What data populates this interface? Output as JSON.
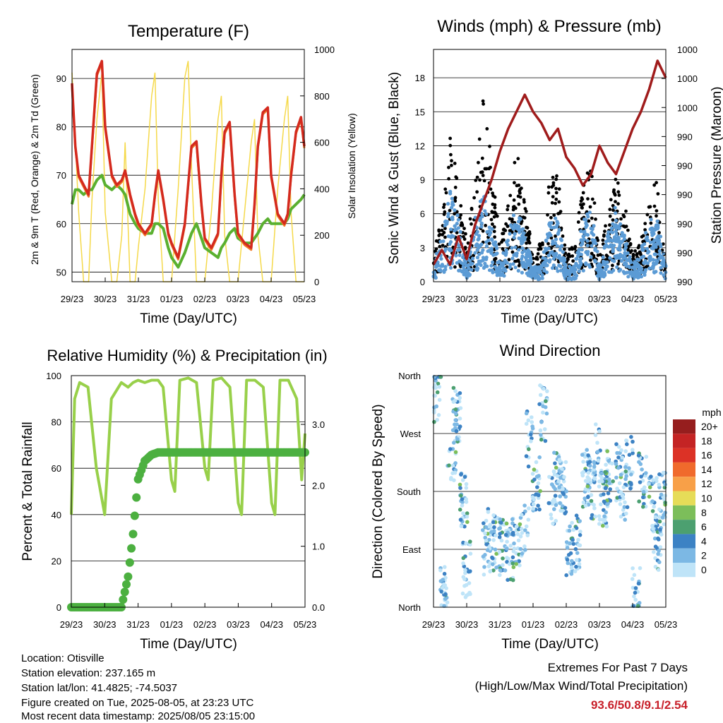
{
  "colors": {
    "temp_red": "#d42a1e",
    "temp_orange": "#f07a28",
    "dewpoint_green": "#5ab030",
    "solar_yellow": "#f5d94a",
    "wind_blue": "#5b9bd5",
    "gust_black": "#000000",
    "pressure_maroon": "#a01c1c",
    "rh_lightgreen": "#98d04a",
    "precip_green": "#4cb040",
    "extremes_red": "#c8202a"
  },
  "x_ticks": [
    "29/23",
    "30/23",
    "31/23",
    "01/23",
    "02/23",
    "03/23",
    "04/23",
    "05/23"
  ],
  "x_axis_label": "Time (Day/UTC)",
  "info": {
    "location": "Location: Otisville",
    "elevation": "Station elevation: 237.165 m",
    "latlon": "Station lat/lon: 41.4825; -74.5037",
    "created": "Figure created on Tue, 2025-08-05, at 23:23 UTC",
    "recent": "Most recent data timestamp: 2025/08/05 23:15:00"
  },
  "extremes": {
    "line1": "Extremes For Past 7 Days",
    "line2": "(High/Low/Max Wind/Total Precipitation)",
    "values": "93.6/50.8/9.1/2.54"
  },
  "chart_data": [
    {
      "type": "line",
      "title": "Temperature (F)",
      "xlabel": "Time (Day/UTC)",
      "ylabel": "2m & 9m T (Red, Orange) & 2m Td (Green)",
      "ylabel_right": "Solar Insolation (Yellow)",
      "ylim": [
        48,
        96
      ],
      "yticks": [
        50,
        60,
        70,
        80,
        90
      ],
      "ylim_right": [
        0,
        1000
      ],
      "yticks_right": [
        0,
        200,
        400,
        600,
        800,
        1000
      ],
      "x": [
        0,
        0.1,
        0.2,
        0.35,
        0.5,
        0.6,
        0.75,
        0.9,
        1.0,
        1.2,
        1.35,
        1.5,
        1.6,
        1.75,
        1.9,
        2.0,
        2.2,
        2.4,
        2.5,
        2.6,
        2.75,
        2.9,
        3.0,
        3.2,
        3.4,
        3.5,
        3.6,
        3.75,
        3.9,
        4.0,
        4.2,
        4.4,
        4.5,
        4.6,
        4.75,
        4.9,
        5.0,
        5.2,
        5.4,
        5.5,
        5.6,
        5.75,
        5.9,
        6.0,
        6.2,
        6.4,
        6.5,
        6.6,
        6.75,
        6.9,
        7.0
      ],
      "series": [
        {
          "name": "2m T",
          "values": [
            89,
            76,
            70,
            68,
            66,
            76,
            91,
            93.6,
            80,
            70,
            68,
            69,
            71,
            66,
            62,
            60,
            58,
            60,
            66,
            71,
            65,
            58,
            56,
            53,
            60,
            68,
            76,
            77,
            64,
            57,
            55,
            58,
            70,
            79,
            81,
            66,
            58,
            56,
            55,
            64,
            76,
            83,
            84,
            70,
            62,
            60,
            62,
            70,
            79,
            82,
            76
          ]
        },
        {
          "name": "2m Td",
          "values": [
            64,
            67,
            67,
            66,
            67,
            67,
            69,
            70,
            68,
            67,
            68,
            67,
            66,
            62,
            60,
            59,
            58,
            58,
            60,
            60,
            59,
            55,
            53,
            51,
            54,
            56,
            58,
            60,
            57,
            55,
            54,
            53,
            55,
            56,
            58,
            59,
            57,
            56,
            56,
            57,
            58,
            60,
            61,
            60,
            60,
            60,
            61,
            63,
            64,
            65,
            66
          ]
        },
        {
          "name": "Solar Insolation",
          "values": [
            900,
            600,
            300,
            0,
            0,
            350,
            700,
            900,
            300,
            0,
            0,
            200,
            600,
            0,
            0,
            150,
            400,
            800,
            900,
            350,
            0,
            0,
            0,
            400,
            880,
            950,
            500,
            0,
            0,
            0,
            300,
            700,
            800,
            200,
            0,
            0,
            0,
            300,
            600,
            700,
            200,
            0,
            0,
            0,
            400,
            700,
            800,
            300,
            0,
            0,
            0
          ]
        }
      ]
    },
    {
      "type": "scatter",
      "title": "Winds (mph) & Pressure (mb)",
      "xlabel": "Time (Day/UTC)",
      "ylabel": "Sonic Wind & Gust (Blue, Black)",
      "ylabel_right": "Station Pressure (Maroon)",
      "ylim": [
        0,
        20.5
      ],
      "yticks": [
        0,
        3,
        6,
        9,
        12,
        15,
        18
      ],
      "yticks_right": [
        "990",
        "990",
        "990",
        "990",
        "990",
        "990",
        "1000",
        "1000",
        "1000"
      ],
      "x": [
        0,
        0.25,
        0.5,
        0.75,
        1.0,
        1.25,
        1.5,
        1.75,
        2.0,
        2.25,
        2.5,
        2.75,
        3.0,
        3.25,
        3.5,
        3.75,
        4.0,
        4.25,
        4.5,
        4.75,
        5.0,
        5.25,
        5.5,
        5.75,
        6.0,
        6.25,
        6.5,
        6.75,
        7.0
      ],
      "series": [
        {
          "name": "Sonic Wind",
          "values": [
            1,
            3,
            6,
            4,
            1,
            4,
            6,
            4,
            1,
            3,
            5,
            3,
            1,
            1,
            4,
            4,
            1,
            1,
            4,
            5,
            1,
            3,
            5,
            3,
            1,
            2,
            4,
            4,
            1
          ]
        },
        {
          "name": "Gust",
          "values": [
            2,
            5,
            11,
            7,
            3,
            7,
            14,
            9,
            3,
            6,
            10,
            6,
            2,
            3,
            8,
            8,
            2,
            3,
            7,
            9,
            2,
            5,
            8,
            6,
            2,
            3,
            6,
            8,
            2
          ]
        },
        {
          "name": "Station Pressure",
          "values": [
            1.5,
            2.8,
            1.5,
            4.0,
            2.0,
            5.0,
            7.0,
            9.0,
            11.5,
            13.5,
            15.0,
            16.5,
            15.0,
            14.0,
            12.5,
            13.5,
            11.0,
            10.0,
            8.5,
            9.5,
            12.0,
            10.5,
            9.5,
            11.5,
            13.5,
            15.0,
            17.0,
            19.5,
            18.0
          ]
        }
      ]
    },
    {
      "type": "line",
      "title": "Relative Humidity (%) & Precipitation (in)",
      "xlabel": "Time (Day/UTC)",
      "ylabel": "Percent & Total Rainfall",
      "ylim": [
        0,
        100
      ],
      "yticks": [
        0,
        20,
        40,
        60,
        80,
        100
      ],
      "ylim_right": [
        0,
        3.8
      ],
      "yticks_right": [
        "0.0",
        "1.0",
        "2.0",
        "3.0"
      ],
      "x": [
        0,
        0.1,
        0.25,
        0.5,
        0.75,
        1.0,
        1.2,
        1.5,
        1.7,
        1.85,
        2.0,
        2.2,
        2.4,
        2.6,
        2.75,
        3.0,
        3.1,
        3.25,
        3.5,
        3.75,
        4.0,
        4.1,
        4.25,
        4.5,
        4.75,
        5.0,
        5.1,
        5.25,
        5.5,
        5.75,
        6.0,
        6.1,
        6.25,
        6.5,
        6.75,
        6.9,
        7.0
      ],
      "series": [
        {
          "name": "Relative Humidity",
          "values": [
            40,
            90,
            97,
            95,
            60,
            40,
            90,
            97,
            95,
            97,
            98,
            97,
            98,
            98,
            95,
            55,
            50,
            98,
            99,
            97,
            60,
            55,
            98,
            99,
            95,
            45,
            40,
            98,
            98,
            95,
            45,
            40,
            98,
            98,
            90,
            55,
            75
          ]
        },
        {
          "name": "Total Precipitation",
          "values": [
            0,
            0,
            0,
            0,
            0,
            0,
            0,
            0,
            0.5,
            1.2,
            2.1,
            2.4,
            2.5,
            2.54,
            2.54,
            2.54,
            2.54,
            2.54,
            2.54,
            2.54,
            2.54,
            2.54,
            2.54,
            2.54,
            2.54,
            2.54,
            2.54,
            2.54,
            2.54,
            2.54,
            2.54,
            2.54,
            2.54,
            2.54,
            2.54,
            2.54,
            2.54
          ]
        }
      ]
    },
    {
      "type": "scatter",
      "title": "Wind Direction",
      "xlabel": "Time (Day/UTC)",
      "ylabel": "Direction (Colored By Speed)",
      "yticks": [
        "North",
        "East",
        "South",
        "West",
        "North"
      ],
      "legend_title": "mph",
      "legend_labels": [
        "20+",
        "18",
        "16",
        "14",
        "12",
        "10",
        "8",
        "6",
        "4",
        "2",
        "0"
      ],
      "legend_colors": [
        "#961e1e",
        "#c42424",
        "#dc3226",
        "#f06a2c",
        "#f8a048",
        "#e6dc58",
        "#7cbe5a",
        "#4ca070",
        "#3c82c4",
        "#7cb8e4",
        "#bfe4f8"
      ],
      "x": [
        0.1,
        0.3,
        0.55,
        0.7,
        0.9,
        1.0,
        1.6,
        1.75,
        1.9,
        2.1,
        2.3,
        2.5,
        2.75,
        2.9,
        3.1,
        3.3,
        3.6,
        3.75,
        3.9,
        4.1,
        4.3,
        4.6,
        4.75,
        4.9,
        5.1,
        5.3,
        5.6,
        5.75,
        5.9,
        6.1,
        6.3,
        6.6,
        6.75,
        6.9
      ],
      "series": [
        {
          "name": "Direction (deg)",
          "values": [
            330,
            20,
            240,
            300,
            170,
            60,
            90,
            110,
            100,
            95,
            80,
            100,
            120,
            260,
            190,
            300,
            170,
            200,
            190,
            90,
            100,
            200,
            180,
            240,
            170,
            200,
            210,
            180,
            220,
            20,
            200,
            160,
            100,
            170
          ]
        }
      ]
    }
  ]
}
